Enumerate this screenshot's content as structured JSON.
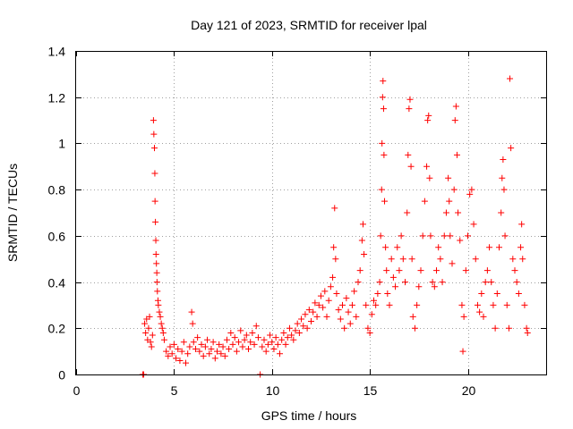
{
  "chart_data": {
    "type": "scatter",
    "title": "Day 121 of 2023, SRMTID for receiver lpal",
    "xlabel": "GPS time / hours",
    "ylabel": "SRMTID / TECUs",
    "xlim": [
      0,
      24
    ],
    "ylim": [
      0,
      1.4
    ],
    "xticks": [
      0,
      5,
      10,
      15,
      20
    ],
    "xtick_labels": [
      "0",
      "5",
      "10",
      "15",
      "20"
    ],
    "yticks": [
      0,
      0.2,
      0.4,
      0.6,
      0.8,
      1,
      1.2,
      1.4
    ],
    "ytick_labels": [
      "0",
      "0.2",
      "0.4",
      "0.6",
      "0.8",
      "1",
      "1.2",
      "1.4"
    ],
    "grid": true,
    "marker": "+",
    "color": "#ff0000",
    "series": [
      {
        "name": "SRMTID",
        "points": [
          [
            3.4,
            0.0
          ],
          [
            3.45,
            0.0
          ],
          [
            3.5,
            0.22
          ],
          [
            3.55,
            0.18
          ],
          [
            3.6,
            0.24
          ],
          [
            3.65,
            0.15
          ],
          [
            3.7,
            0.2
          ],
          [
            3.75,
            0.25
          ],
          [
            3.8,
            0.14
          ],
          [
            3.85,
            0.12
          ],
          [
            3.9,
            0.17
          ],
          [
            3.95,
            1.1
          ],
          [
            3.97,
            1.04
          ],
          [
            4.0,
            0.98
          ],
          [
            4.02,
            0.87
          ],
          [
            4.03,
            0.75
          ],
          [
            4.05,
            0.66
          ],
          [
            4.07,
            0.58
          ],
          [
            4.08,
            0.52
          ],
          [
            4.1,
            0.48
          ],
          [
            4.12,
            0.44
          ],
          [
            4.13,
            0.4
          ],
          [
            4.15,
            0.36
          ],
          [
            4.18,
            0.32
          ],
          [
            4.2,
            0.3
          ],
          [
            4.25,
            0.27
          ],
          [
            4.3,
            0.25
          ],
          [
            4.35,
            0.22
          ],
          [
            4.4,
            0.2
          ],
          [
            4.45,
            0.18
          ],
          [
            4.5,
            0.15
          ],
          [
            4.6,
            0.1
          ],
          [
            4.7,
            0.08
          ],
          [
            4.8,
            0.12
          ],
          [
            4.9,
            0.09
          ],
          [
            5.0,
            0.13
          ],
          [
            5.1,
            0.07
          ],
          [
            5.2,
            0.11
          ],
          [
            5.3,
            0.06
          ],
          [
            5.4,
            0.1
          ],
          [
            5.5,
            0.14
          ],
          [
            5.6,
            0.05
          ],
          [
            5.7,
            0.09
          ],
          [
            5.8,
            0.12
          ],
          [
            5.9,
            0.27
          ],
          [
            5.95,
            0.22
          ],
          [
            6.0,
            0.14
          ],
          [
            6.1,
            0.11
          ],
          [
            6.2,
            0.16
          ],
          [
            6.3,
            0.1
          ],
          [
            6.4,
            0.13
          ],
          [
            6.5,
            0.08
          ],
          [
            6.6,
            0.12
          ],
          [
            6.7,
            0.15
          ],
          [
            6.8,
            0.09
          ],
          [
            6.9,
            0.11
          ],
          [
            7.0,
            0.14
          ],
          [
            7.1,
            0.07
          ],
          [
            7.2,
            0.1
          ],
          [
            7.3,
            0.13
          ],
          [
            7.4,
            0.09
          ],
          [
            7.5,
            0.12
          ],
          [
            7.6,
            0.08
          ],
          [
            7.7,
            0.15
          ],
          [
            7.8,
            0.11
          ],
          [
            7.9,
            0.18
          ],
          [
            8.0,
            0.13
          ],
          [
            8.1,
            0.16
          ],
          [
            8.2,
            0.1
          ],
          [
            8.3,
            0.14
          ],
          [
            8.4,
            0.19
          ],
          [
            8.5,
            0.12
          ],
          [
            8.6,
            0.15
          ],
          [
            8.7,
            0.17
          ],
          [
            8.8,
            0.11
          ],
          [
            8.9,
            0.14
          ],
          [
            9.0,
            0.18
          ],
          [
            9.1,
            0.13
          ],
          [
            9.2,
            0.21
          ],
          [
            9.3,
            0.16
          ],
          [
            9.4,
            0.0
          ],
          [
            9.5,
            0.12
          ],
          [
            9.6,
            0.15
          ],
          [
            9.7,
            0.1
          ],
          [
            9.8,
            0.13
          ],
          [
            9.9,
            0.17
          ],
          [
            10.0,
            0.14
          ],
          [
            10.1,
            0.11
          ],
          [
            10.2,
            0.16
          ],
          [
            10.3,
            0.13
          ],
          [
            10.4,
            0.09
          ],
          [
            10.5,
            0.15
          ],
          [
            10.6,
            0.18
          ],
          [
            10.7,
            0.13
          ],
          [
            10.8,
            0.16
          ],
          [
            10.9,
            0.2
          ],
          [
            11.0,
            0.17
          ],
          [
            11.1,
            0.15
          ],
          [
            11.2,
            0.19
          ],
          [
            11.3,
            0.22
          ],
          [
            11.4,
            0.18
          ],
          [
            11.5,
            0.24
          ],
          [
            11.6,
            0.21
          ],
          [
            11.7,
            0.26
          ],
          [
            11.8,
            0.2
          ],
          [
            11.9,
            0.28
          ],
          [
            12.0,
            0.23
          ],
          [
            12.1,
            0.27
          ],
          [
            12.2,
            0.31
          ],
          [
            12.3,
            0.25
          ],
          [
            12.4,
            0.3
          ],
          [
            12.5,
            0.34
          ],
          [
            12.6,
            0.29
          ],
          [
            12.7,
            0.36
          ],
          [
            12.8,
            0.25
          ],
          [
            12.9,
            0.32
          ],
          [
            13.0,
            0.38
          ],
          [
            13.1,
            0.42
          ],
          [
            13.15,
            0.55
          ],
          [
            13.2,
            0.72
          ],
          [
            13.25,
            0.5
          ],
          [
            13.3,
            0.35
          ],
          [
            13.4,
            0.28
          ],
          [
            13.5,
            0.24
          ],
          [
            13.6,
            0.3
          ],
          [
            13.7,
            0.2
          ],
          [
            13.8,
            0.33
          ],
          [
            13.9,
            0.27
          ],
          [
            14.0,
            0.22
          ],
          [
            14.1,
            0.3
          ],
          [
            14.2,
            0.36
          ],
          [
            14.3,
            0.25
          ],
          [
            14.4,
            0.4
          ],
          [
            14.5,
            0.45
          ],
          [
            14.6,
            0.58
          ],
          [
            14.65,
            0.65
          ],
          [
            14.7,
            0.52
          ],
          [
            14.8,
            0.3
          ],
          [
            14.9,
            0.2
          ],
          [
            15.0,
            0.18
          ],
          [
            15.1,
            0.26
          ],
          [
            15.2,
            0.32
          ],
          [
            15.3,
            0.3
          ],
          [
            15.4,
            0.35
          ],
          [
            15.5,
            0.4
          ],
          [
            15.55,
            0.6
          ],
          [
            15.6,
            0.8
          ],
          [
            15.62,
            1.0
          ],
          [
            15.65,
            1.2
          ],
          [
            15.67,
            1.27
          ],
          [
            15.7,
            1.15
          ],
          [
            15.72,
            0.95
          ],
          [
            15.75,
            0.75
          ],
          [
            15.8,
            0.55
          ],
          [
            15.85,
            0.45
          ],
          [
            15.9,
            0.35
          ],
          [
            16.0,
            0.3
          ],
          [
            16.1,
            0.5
          ],
          [
            16.2,
            0.42
          ],
          [
            16.3,
            0.38
          ],
          [
            16.4,
            0.55
          ],
          [
            16.5,
            0.45
          ],
          [
            16.6,
            0.6
          ],
          [
            16.7,
            0.5
          ],
          [
            16.8,
            0.4
          ],
          [
            16.9,
            0.7
          ],
          [
            16.95,
            0.95
          ],
          [
            17.0,
            1.15
          ],
          [
            17.05,
            1.19
          ],
          [
            17.1,
            0.9
          ],
          [
            17.15,
            0.5
          ],
          [
            17.2,
            0.25
          ],
          [
            17.3,
            0.2
          ],
          [
            17.4,
            0.3
          ],
          [
            17.5,
            0.38
          ],
          [
            17.6,
            0.45
          ],
          [
            17.7,
            0.6
          ],
          [
            17.8,
            0.75
          ],
          [
            17.9,
            0.9
          ],
          [
            17.95,
            1.1
          ],
          [
            18.0,
            1.12
          ],
          [
            18.05,
            0.85
          ],
          [
            18.1,
            0.6
          ],
          [
            18.2,
            0.4
          ],
          [
            18.3,
            0.38
          ],
          [
            18.4,
            0.45
          ],
          [
            18.5,
            0.55
          ],
          [
            18.6,
            0.5
          ],
          [
            18.7,
            0.4
          ],
          [
            18.8,
            0.6
          ],
          [
            18.9,
            0.7
          ],
          [
            19.0,
            0.85
          ],
          [
            19.05,
            0.75
          ],
          [
            19.1,
            0.6
          ],
          [
            19.2,
            0.48
          ],
          [
            19.3,
            0.8
          ],
          [
            19.35,
            1.1
          ],
          [
            19.4,
            1.16
          ],
          [
            19.45,
            0.95
          ],
          [
            19.5,
            0.7
          ],
          [
            19.6,
            0.58
          ],
          [
            19.7,
            0.3
          ],
          [
            19.75,
            0.1
          ],
          [
            19.8,
            0.25
          ],
          [
            19.9,
            0.45
          ],
          [
            20.0,
            0.6
          ],
          [
            20.1,
            0.78
          ],
          [
            20.2,
            0.8
          ],
          [
            20.3,
            0.65
          ],
          [
            20.4,
            0.5
          ],
          [
            20.5,
            0.3
          ],
          [
            20.6,
            0.27
          ],
          [
            20.7,
            0.35
          ],
          [
            20.8,
            0.25
          ],
          [
            20.9,
            0.4
          ],
          [
            21.0,
            0.45
          ],
          [
            21.1,
            0.55
          ],
          [
            21.2,
            0.4
          ],
          [
            21.3,
            0.3
          ],
          [
            21.4,
            0.2
          ],
          [
            21.5,
            0.35
          ],
          [
            21.6,
            0.55
          ],
          [
            21.7,
            0.7
          ],
          [
            21.75,
            0.85
          ],
          [
            21.8,
            0.93
          ],
          [
            21.85,
            0.8
          ],
          [
            21.9,
            0.6
          ],
          [
            22.0,
            0.3
          ],
          [
            22.1,
            0.2
          ],
          [
            22.15,
            1.28
          ],
          [
            22.2,
            0.98
          ],
          [
            22.3,
            0.5
          ],
          [
            22.4,
            0.45
          ],
          [
            22.5,
            0.4
          ],
          [
            22.6,
            0.35
          ],
          [
            22.7,
            0.55
          ],
          [
            22.75,
            0.65
          ],
          [
            22.8,
            0.5
          ],
          [
            22.9,
            0.3
          ],
          [
            23.0,
            0.2
          ],
          [
            23.05,
            0.18
          ]
        ]
      }
    ]
  }
}
